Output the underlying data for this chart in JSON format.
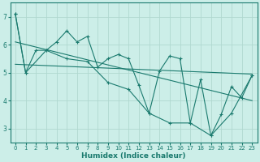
{
  "xlabel": "Humidex (Indice chaleur)",
  "bg_color": "#cceee8",
  "line_color": "#1a7a6e",
  "grid_color": "#b0d8d0",
  "xlim": [
    -0.5,
    23.5
  ],
  "ylim": [
    2.5,
    7.5
  ],
  "yticks": [
    3,
    4,
    5,
    6,
    7
  ],
  "xticks": [
    0,
    1,
    2,
    3,
    4,
    5,
    6,
    7,
    8,
    9,
    10,
    11,
    12,
    13,
    14,
    15,
    16,
    17,
    18,
    19,
    20,
    21,
    22,
    23
  ],
  "series1": {
    "points": [
      [
        0,
        7.1
      ],
      [
        1,
        5.0
      ],
      [
        2,
        5.8
      ],
      [
        3,
        5.8
      ],
      [
        4,
        6.1
      ],
      [
        5,
        6.5
      ],
      [
        6,
        6.1
      ],
      [
        7,
        6.3
      ],
      [
        8,
        5.2
      ],
      [
        9,
        5.5
      ],
      [
        10,
        5.65
      ],
      [
        11,
        5.5
      ],
      [
        12,
        4.55
      ],
      [
        13,
        3.55
      ],
      [
        14,
        5.05
      ],
      [
        15,
        5.6
      ],
      [
        16,
        5.5
      ],
      [
        17,
        3.2
      ],
      [
        18,
        4.75
      ],
      [
        19,
        2.75
      ],
      [
        20,
        3.5
      ],
      [
        21,
        4.5
      ],
      [
        22,
        4.1
      ],
      [
        23,
        4.9
      ]
    ]
  },
  "series2": {
    "points": [
      [
        0,
        7.1
      ],
      [
        1,
        5.0
      ],
      [
        3,
        5.8
      ],
      [
        5,
        5.5
      ],
      [
        7,
        5.4
      ],
      [
        9,
        4.65
      ],
      [
        11,
        4.4
      ],
      [
        13,
        3.55
      ],
      [
        15,
        3.2
      ],
      [
        17,
        3.2
      ],
      [
        19,
        2.75
      ],
      [
        21,
        3.55
      ],
      [
        23,
        4.9
      ]
    ]
  },
  "trend1": {
    "points": [
      [
        0,
        6.1
      ],
      [
        23,
        4.0
      ]
    ]
  },
  "trend2": {
    "points": [
      [
        0,
        5.3
      ],
      [
        23,
        4.95
      ]
    ]
  }
}
